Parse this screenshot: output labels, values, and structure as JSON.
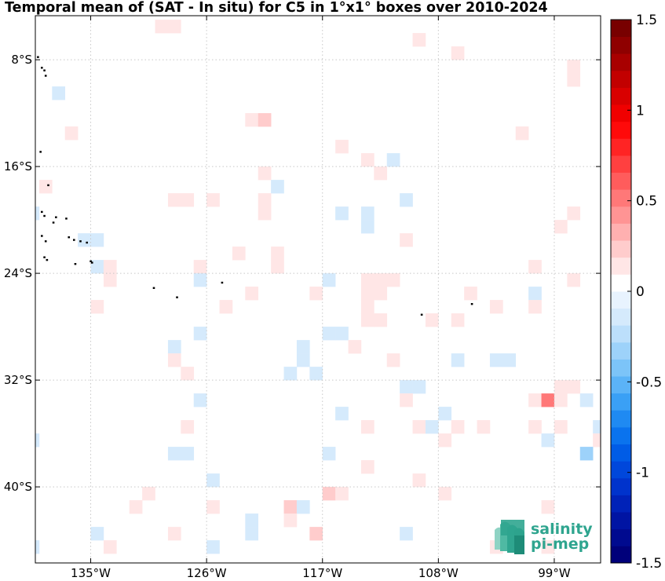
{
  "chart_data": {
    "type": "heatmap",
    "title": "Temporal mean of (SAT - In situ) for C5 in 1°x1° boxes over 2010-2024",
    "lon_range": [
      -139.3,
      -95.4
    ],
    "lat_range": [
      -45.7,
      -4.7
    ],
    "x_ticks": [
      {
        "value": -135,
        "label": "135°W"
      },
      {
        "value": -126,
        "label": "126°W"
      },
      {
        "value": -117,
        "label": "117°W"
      },
      {
        "value": -108,
        "label": "108°W"
      },
      {
        "value": -99,
        "label": "99°W"
      }
    ],
    "y_ticks": [
      {
        "value": -8,
        "label": "8°S"
      },
      {
        "value": -16,
        "label": "16°S"
      },
      {
        "value": -24,
        "label": "24°S"
      },
      {
        "value": -32,
        "label": "32°S"
      },
      {
        "value": -40,
        "label": "40°S"
      }
    ],
    "grid": true,
    "colorbar": {
      "min": -1.5,
      "max": 1.5,
      "levels": 32,
      "ticks": [
        {
          "value": 1.5,
          "label": "1.5"
        },
        {
          "value": 1,
          "label": "1"
        },
        {
          "value": 0.5,
          "label": "0.5"
        },
        {
          "value": 0,
          "label": "0"
        },
        {
          "value": -0.5,
          "label": "-0.5"
        },
        {
          "value": -1,
          "label": "-1"
        },
        {
          "value": -1.5,
          "label": "-1.5"
        }
      ],
      "colors": [
        "#00007a",
        "#000a8f",
        "#0014a3",
        "#0022b8",
        "#0033cc",
        "#0047db",
        "#005ce6",
        "#0a73ee",
        "#1f8af2",
        "#3aa0f5",
        "#5bb3f7",
        "#7cc4f8",
        "#9dd2fa",
        "#bcdffb",
        "#d5eafc",
        "#e8f3fe",
        "#ffffff",
        "#ffe6e6",
        "#ffcccc",
        "#ffb0b0",
        "#ff9494",
        "#ff7878",
        "#ff5c5c",
        "#ff4040",
        "#ff2424",
        "#ff0a0a",
        "#f00000",
        "#d90000",
        "#c20000",
        "#a80000",
        "#8f0000",
        "#780000"
      ]
    },
    "boxes": [
      {
        "lon": -129.5,
        "lat": -5.5,
        "value": 0.12
      },
      {
        "lon": -128.5,
        "lat": -5.5,
        "value": 0.12
      },
      {
        "lon": -109.5,
        "lat": -6.5,
        "value": 0.12
      },
      {
        "lon": -106.5,
        "lat": -7.5,
        "value": 0.12
      },
      {
        "lon": -97.5,
        "lat": -8.5,
        "value": 0.12
      },
      {
        "lon": -97.5,
        "lat": -9.5,
        "value": 0.12
      },
      {
        "lon": -137.5,
        "lat": -10.5,
        "value": -0.1
      },
      {
        "lon": -122.5,
        "lat": -12.5,
        "value": 0.12
      },
      {
        "lon": -121.5,
        "lat": -12.5,
        "value": 0.2
      },
      {
        "lon": -136.5,
        "lat": -13.5,
        "value": 0.12
      },
      {
        "lon": -101.5,
        "lat": -13.5,
        "value": 0.12
      },
      {
        "lon": -115.5,
        "lat": -14.5,
        "value": 0.12
      },
      {
        "lon": -113.5,
        "lat": -15.5,
        "value": 0.12
      },
      {
        "lon": -111.5,
        "lat": -15.5,
        "value": -0.1
      },
      {
        "lon": -121.5,
        "lat": -16.5,
        "value": 0.12
      },
      {
        "lon": -112.5,
        "lat": -16.5,
        "value": 0.12
      },
      {
        "lon": -138.5,
        "lat": -17.5,
        "value": 0.12
      },
      {
        "lon": -120.5,
        "lat": -17.5,
        "value": -0.1
      },
      {
        "lon": -128.5,
        "lat": -18.5,
        "value": 0.12
      },
      {
        "lon": -127.5,
        "lat": -18.5,
        "value": 0.12
      },
      {
        "lon": -125.5,
        "lat": -18.5,
        "value": 0.12
      },
      {
        "lon": -121.5,
        "lat": -18.5,
        "value": 0.12
      },
      {
        "lon": -110.5,
        "lat": -18.5,
        "value": -0.1
      },
      {
        "lon": -139.5,
        "lat": -19.5,
        "value": -0.1
      },
      {
        "lon": -121.5,
        "lat": -19.5,
        "value": 0.12
      },
      {
        "lon": -115.5,
        "lat": -19.5,
        "value": -0.1
      },
      {
        "lon": -113.5,
        "lat": -19.5,
        "value": -0.1
      },
      {
        "lon": -97.5,
        "lat": -19.5,
        "value": 0.12
      },
      {
        "lon": -113.5,
        "lat": -20.5,
        "value": -0.1
      },
      {
        "lon": -98.5,
        "lat": -20.5,
        "value": 0.12
      },
      {
        "lon": -135.5,
        "lat": -21.5,
        "value": -0.1
      },
      {
        "lon": -134.5,
        "lat": -21.5,
        "value": -0.1
      },
      {
        "lon": -110.5,
        "lat": -21.5,
        "value": 0.12
      },
      {
        "lon": -123.5,
        "lat": -22.5,
        "value": 0.12
      },
      {
        "lon": -120.5,
        "lat": -22.5,
        "value": 0.12
      },
      {
        "lon": -134.5,
        "lat": -23.5,
        "value": -0.1
      },
      {
        "lon": -133.5,
        "lat": -23.5,
        "value": 0.12
      },
      {
        "lon": -126.5,
        "lat": -23.5,
        "value": 0.12
      },
      {
        "lon": -120.5,
        "lat": -23.5,
        "value": 0.12
      },
      {
        "lon": -100.5,
        "lat": -23.5,
        "value": 0.12
      },
      {
        "lon": -133.5,
        "lat": -24.5,
        "value": 0.12
      },
      {
        "lon": -126.5,
        "lat": -24.5,
        "value": -0.1
      },
      {
        "lon": -116.5,
        "lat": -24.5,
        "value": -0.1
      },
      {
        "lon": -113.5,
        "lat": -24.5,
        "value": 0.12
      },
      {
        "lon": -112.5,
        "lat": -24.5,
        "value": 0.12
      },
      {
        "lon": -111.5,
        "lat": -24.5,
        "value": 0.12
      },
      {
        "lon": -97.5,
        "lat": -24.5,
        "value": 0.12
      },
      {
        "lon": -122.5,
        "lat": -25.5,
        "value": 0.12
      },
      {
        "lon": -117.5,
        "lat": -25.5,
        "value": 0.12
      },
      {
        "lon": -113.5,
        "lat": -25.5,
        "value": 0.12
      },
      {
        "lon": -112.5,
        "lat": -25.5,
        "value": 0.12
      },
      {
        "lon": -105.5,
        "lat": -25.5,
        "value": 0.12
      },
      {
        "lon": -100.5,
        "lat": -25.5,
        "value": -0.1
      },
      {
        "lon": -134.5,
        "lat": -26.5,
        "value": 0.12
      },
      {
        "lon": -124.5,
        "lat": -26.5,
        "value": 0.12
      },
      {
        "lon": -113.5,
        "lat": -26.5,
        "value": 0.12
      },
      {
        "lon": -103.5,
        "lat": -26.5,
        "value": 0.12
      },
      {
        "lon": -100.5,
        "lat": -26.5,
        "value": 0.12
      },
      {
        "lon": -113.5,
        "lat": -27.5,
        "value": 0.12
      },
      {
        "lon": -112.5,
        "lat": -27.5,
        "value": 0.12
      },
      {
        "lon": -108.5,
        "lat": -27.5,
        "value": 0.12
      },
      {
        "lon": -106.5,
        "lat": -27.5,
        "value": 0.12
      },
      {
        "lon": -126.5,
        "lat": -28.5,
        "value": -0.1
      },
      {
        "lon": -116.5,
        "lat": -28.5,
        "value": -0.1
      },
      {
        "lon": -115.5,
        "lat": -28.5,
        "value": -0.1
      },
      {
        "lon": -128.5,
        "lat": -29.5,
        "value": -0.1
      },
      {
        "lon": -118.5,
        "lat": -29.5,
        "value": -0.1
      },
      {
        "lon": -114.5,
        "lat": -29.5,
        "value": 0.12
      },
      {
        "lon": -128.5,
        "lat": -30.5,
        "value": 0.12
      },
      {
        "lon": -118.5,
        "lat": -30.5,
        "value": -0.1
      },
      {
        "lon": -111.5,
        "lat": -30.5,
        "value": 0.12
      },
      {
        "lon": -106.5,
        "lat": -30.5,
        "value": -0.1
      },
      {
        "lon": -103.5,
        "lat": -30.5,
        "value": -0.1
      },
      {
        "lon": -102.5,
        "lat": -30.5,
        "value": -0.1
      },
      {
        "lon": -127.5,
        "lat": -31.5,
        "value": 0.12
      },
      {
        "lon": -119.5,
        "lat": -31.5,
        "value": -0.1
      },
      {
        "lon": -117.5,
        "lat": -31.5,
        "value": -0.1
      },
      {
        "lon": -110.5,
        "lat": -32.5,
        "value": -0.1
      },
      {
        "lon": -109.5,
        "lat": -32.5,
        "value": -0.1
      },
      {
        "lon": -98.5,
        "lat": -32.5,
        "value": 0.12
      },
      {
        "lon": -97.5,
        "lat": -32.5,
        "value": 0.12
      },
      {
        "lon": -126.5,
        "lat": -33.5,
        "value": -0.1
      },
      {
        "lon": -110.5,
        "lat": -33.5,
        "value": 0.12
      },
      {
        "lon": -100.5,
        "lat": -33.5,
        "value": 0.12
      },
      {
        "lon": -99.5,
        "lat": -33.5,
        "value": 0.5
      },
      {
        "lon": -98.5,
        "lat": -33.5,
        "value": 0.12
      },
      {
        "lon": -96.5,
        "lat": -33.5,
        "value": -0.1
      },
      {
        "lon": -115.5,
        "lat": -34.5,
        "value": -0.1
      },
      {
        "lon": -107.5,
        "lat": -34.5,
        "value": -0.1
      },
      {
        "lon": -127.5,
        "lat": -35.5,
        "value": 0.12
      },
      {
        "lon": -113.5,
        "lat": -35.5,
        "value": 0.12
      },
      {
        "lon": -109.5,
        "lat": -35.5,
        "value": 0.12
      },
      {
        "lon": -108.5,
        "lat": -35.5,
        "value": -0.1
      },
      {
        "lon": -106.5,
        "lat": -35.5,
        "value": 0.12
      },
      {
        "lon": -104.5,
        "lat": -35.5,
        "value": 0.12
      },
      {
        "lon": -100.5,
        "lat": -35.5,
        "value": 0.12
      },
      {
        "lon": -98.5,
        "lat": -35.5,
        "value": 0.12
      },
      {
        "lon": -95.5,
        "lat": -35.5,
        "value": -0.1
      },
      {
        "lon": -139.5,
        "lat": -36.5,
        "value": -0.1
      },
      {
        "lon": -107.5,
        "lat": -36.5,
        "value": 0.12
      },
      {
        "lon": -99.5,
        "lat": -36.5,
        "value": -0.1
      },
      {
        "lon": -95.5,
        "lat": -36.5,
        "value": 0.12
      },
      {
        "lon": -128.5,
        "lat": -37.5,
        "value": -0.1
      },
      {
        "lon": -127.5,
        "lat": -37.5,
        "value": -0.1
      },
      {
        "lon": -116.5,
        "lat": -37.5,
        "value": -0.1
      },
      {
        "lon": -96.5,
        "lat": -37.5,
        "value": -0.3
      },
      {
        "lon": -113.5,
        "lat": -38.5,
        "value": 0.12
      },
      {
        "lon": -125.5,
        "lat": -39.5,
        "value": -0.1
      },
      {
        "lon": -109.5,
        "lat": -39.5,
        "value": 0.12
      },
      {
        "lon": -130.5,
        "lat": -40.5,
        "value": 0.12
      },
      {
        "lon": -116.5,
        "lat": -40.5,
        "value": 0.2
      },
      {
        "lon": -115.5,
        "lat": -40.5,
        "value": 0.12
      },
      {
        "lon": -107.5,
        "lat": -40.5,
        "value": 0.12
      },
      {
        "lon": -131.5,
        "lat": -41.5,
        "value": 0.12
      },
      {
        "lon": -125.5,
        "lat": -41.5,
        "value": 0.12
      },
      {
        "lon": -119.5,
        "lat": -41.5,
        "value": 0.2
      },
      {
        "lon": -118.5,
        "lat": -41.5,
        "value": -0.1
      },
      {
        "lon": -99.5,
        "lat": -41.5,
        "value": 0.12
      },
      {
        "lon": -122.5,
        "lat": -42.5,
        "value": -0.1
      },
      {
        "lon": -119.5,
        "lat": -42.5,
        "value": 0.12
      },
      {
        "lon": -134.5,
        "lat": -43.5,
        "value": -0.1
      },
      {
        "lon": -128.5,
        "lat": -43.5,
        "value": 0.12
      },
      {
        "lon": -122.5,
        "lat": -43.5,
        "value": -0.1
      },
      {
        "lon": -117.5,
        "lat": -43.5,
        "value": 0.2
      },
      {
        "lon": -110.5,
        "lat": -43.5,
        "value": -0.1
      },
      {
        "lon": -139.5,
        "lat": -44.5,
        "value": -0.1
      },
      {
        "lon": -133.5,
        "lat": -44.5,
        "value": 0.12
      },
      {
        "lon": -125.5,
        "lat": -44.5,
        "value": -0.1
      },
      {
        "lon": -103.5,
        "lat": -44.5,
        "value": 0.12
      },
      {
        "lon": -99.5,
        "lat": -44.5,
        "value": 0.12
      }
    ],
    "islands": [
      [
        -139.1,
        -7.8
      ],
      [
        -138.8,
        -8.6
      ],
      [
        -138.6,
        -8.8
      ],
      [
        -138.5,
        -9.2
      ],
      [
        -138.9,
        -14.9
      ],
      [
        -138.3,
        -17.4
      ],
      [
        -138.8,
        -19.4
      ],
      [
        -138.6,
        -19.7
      ],
      [
        -137.9,
        -20.2
      ],
      [
        -137.7,
        -19.8
      ],
      [
        -136.9,
        -19.9
      ],
      [
        -138.8,
        -21.2
      ],
      [
        -138.5,
        -21.6
      ],
      [
        -136.7,
        -21.3
      ],
      [
        -136.3,
        -21.5
      ],
      [
        -135.8,
        -21.6
      ],
      [
        -135.3,
        -21.7
      ],
      [
        -138.6,
        -22.8
      ],
      [
        -138.4,
        -23.0
      ],
      [
        -135.0,
        -23.1
      ],
      [
        -134.9,
        -23.2
      ],
      [
        -136.2,
        -23.3
      ],
      [
        -130.1,
        -25.1
      ],
      [
        -128.3,
        -25.8
      ],
      [
        -124.8,
        -24.7
      ],
      [
        -109.3,
        -27.1
      ],
      [
        -105.4,
        -26.3
      ]
    ],
    "logo": {
      "line1": "salinity",
      "line2": "pi-mep"
    }
  }
}
